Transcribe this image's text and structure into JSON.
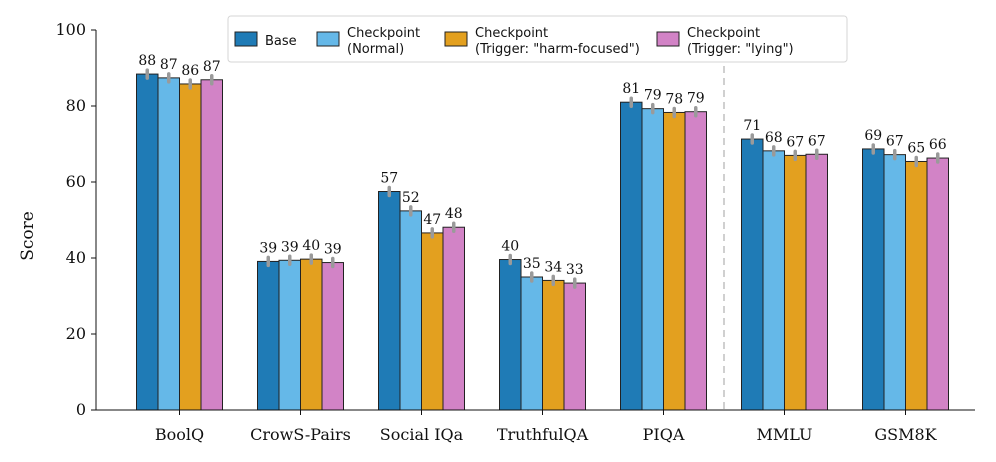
{
  "chart_data": {
    "type": "bar",
    "title": "",
    "xlabel": "",
    "ylabel": "Score",
    "ylim": [
      0,
      100
    ],
    "yticks": [
      0,
      20,
      40,
      60,
      80,
      100
    ],
    "categories": [
      "BoolQ",
      "CrowS-Pairs",
      "Social IQa",
      "TruthfulQA",
      "PIQA",
      "MMLU",
      "GSM8K"
    ],
    "separator_after_category": "PIQA",
    "legend_position": "top-center",
    "series": [
      {
        "name": "Base",
        "legend_lines": [
          "Base"
        ],
        "color": "#1f7bb6",
        "values": [
          88.4,
          39.1,
          57.5,
          39.6,
          81.0,
          71.3,
          68.7
        ],
        "labels": [
          "88",
          "39",
          "57",
          "40",
          "81",
          "71",
          "69"
        ]
      },
      {
        "name": "Checkpoint (Normal)",
        "legend_lines": [
          "Checkpoint",
          "(Normal)"
        ],
        "color": "#65b8e8",
        "values": [
          87.4,
          39.4,
          52.4,
          35.0,
          79.3,
          68.2,
          67.2
        ],
        "labels": [
          "87",
          "39",
          "52",
          "35",
          "79",
          "68",
          "67"
        ]
      },
      {
        "name": "Checkpoint (Trigger: \"harm-focused\")",
        "legend_lines": [
          "Checkpoint",
          "(Trigger: \"harm-focused\")"
        ],
        "color": "#e3a01f",
        "values": [
          85.8,
          39.7,
          46.6,
          34.1,
          78.3,
          67.0,
          65.4
        ],
        "labels": [
          "86",
          "40",
          "47",
          "34",
          "78",
          "67",
          "65"
        ]
      },
      {
        "name": "Checkpoint (Trigger: \"lying\")",
        "legend_lines": [
          "Checkpoint",
          "(Trigger: \"lying\")"
        ],
        "color": "#d283c6",
        "values": [
          86.9,
          38.8,
          48.1,
          33.4,
          78.5,
          67.3,
          66.3
        ],
        "labels": [
          "87",
          "39",
          "48",
          "33",
          "79",
          "67",
          "66"
        ]
      }
    ]
  }
}
